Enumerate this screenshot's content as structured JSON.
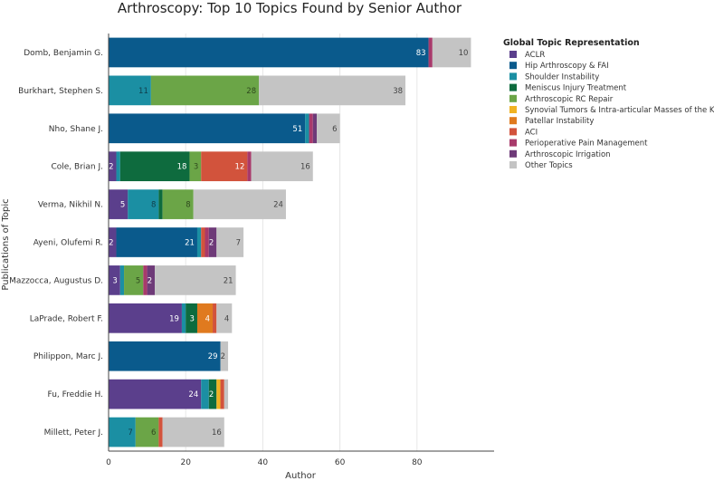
{
  "chart_data": {
    "type": "bar",
    "orientation": "horizontal",
    "stacked": true,
    "title": "Arthroscopy: Top 10 Topics Found by Senior Author",
    "xlabel": "Author",
    "ylabel": "Publications of Topic",
    "xlim": [
      0,
      100
    ],
    "xticks": [
      0,
      20,
      40,
      60,
      80
    ],
    "grid": true,
    "legend_title": "Global Topic Representation",
    "legend_position": "right",
    "categories": [
      "Domb, Benjamin G.",
      "Burkhart, Stephen S.",
      "Nho, Shane J.",
      "Cole, Brian J.",
      "Verma, Nikhil N.",
      "Ayeni, Olufemi R.",
      "Mazzocca, Augustus D.",
      "LaPrade, Robert F.",
      "Philippon, Marc J.",
      "Fu, Freddie H.",
      "Millett, Peter J."
    ],
    "series": [
      {
        "name": "ACLR",
        "color": "#5b3f8c",
        "values": [
          0,
          0,
          0,
          2,
          5,
          2,
          3,
          19,
          0,
          24,
          0
        ]
      },
      {
        "name": "Hip Arthroscopy & FAI",
        "color": "#0a5a8c",
        "values": [
          83,
          0,
          51,
          0,
          0,
          21,
          0,
          0,
          29,
          0,
          0
        ]
      },
      {
        "name": "Shoulder Instability",
        "color": "#1b8fa3",
        "values": [
          0,
          11,
          1,
          1,
          8,
          1,
          1,
          1,
          0,
          2,
          7
        ]
      },
      {
        "name": "Meniscus Injury Treatment",
        "color": "#0e6b3e",
        "values": [
          0,
          0,
          0,
          18,
          1,
          0,
          0,
          3,
          0,
          2,
          0
        ]
      },
      {
        "name": "Arthroscopic RC Repair",
        "color": "#6ba547",
        "values": [
          0,
          28,
          0,
          3,
          8,
          0,
          5,
          0,
          0,
          0,
          6
        ]
      },
      {
        "name": "Synovial Tumors & Intra-articular Masses of the Knee",
        "color": "#f0b323",
        "values": [
          0,
          0,
          0,
          0,
          0,
          0,
          0,
          0,
          0,
          1,
          0
        ]
      },
      {
        "name": "Patellar Instability",
        "color": "#e07a1f",
        "values": [
          0,
          0,
          0,
          0,
          0,
          0,
          0,
          4,
          0,
          0,
          0
        ]
      },
      {
        "name": "ACI",
        "color": "#d2533c",
        "values": [
          0,
          0,
          0,
          12,
          0,
          1,
          0,
          1,
          0,
          1,
          1
        ]
      },
      {
        "name": "Perioperative Pain Management",
        "color": "#a83a6b",
        "values": [
          1,
          0,
          1,
          1,
          0,
          1,
          1,
          0,
          0,
          0,
          0
        ]
      },
      {
        "name": "Arthroscopic Irrigation",
        "color": "#6e3a78",
        "values": [
          0,
          0,
          1,
          0,
          0,
          2,
          2,
          0,
          0,
          0,
          0
        ]
      },
      {
        "name": "Other Topics",
        "color": "#c4c4c4",
        "values": [
          10,
          38,
          6,
          16,
          24,
          7,
          21,
          4,
          2,
          1,
          16
        ]
      }
    ],
    "data_labels": [
      {
        "category": 0,
        "series": 1,
        "text": "83"
      },
      {
        "category": 0,
        "series": 10,
        "text": "10"
      },
      {
        "category": 1,
        "series": 2,
        "text": "11"
      },
      {
        "category": 1,
        "series": 4,
        "text": "28"
      },
      {
        "category": 1,
        "series": 10,
        "text": "38"
      },
      {
        "category": 2,
        "series": 1,
        "text": "51"
      },
      {
        "category": 2,
        "series": 10,
        "text": "6"
      },
      {
        "category": 3,
        "series": 0,
        "text": "2"
      },
      {
        "category": 3,
        "series": 3,
        "text": "18"
      },
      {
        "category": 3,
        "series": 4,
        "text": "3"
      },
      {
        "category": 3,
        "series": 7,
        "text": "12"
      },
      {
        "category": 3,
        "series": 10,
        "text": "16"
      },
      {
        "category": 4,
        "series": 0,
        "text": "5"
      },
      {
        "category": 4,
        "series": 2,
        "text": "8"
      },
      {
        "category": 4,
        "series": 4,
        "text": "8"
      },
      {
        "category": 4,
        "series": 10,
        "text": "24"
      },
      {
        "category": 5,
        "series": 0,
        "text": "2"
      },
      {
        "category": 5,
        "series": 1,
        "text": "21"
      },
      {
        "category": 5,
        "series": 9,
        "text": "2"
      },
      {
        "category": 5,
        "series": 10,
        "text": "7"
      },
      {
        "category": 6,
        "series": 0,
        "text": "3"
      },
      {
        "category": 6,
        "series": 4,
        "text": "5"
      },
      {
        "category": 6,
        "series": 9,
        "text": "2"
      },
      {
        "category": 6,
        "series": 10,
        "text": "21"
      },
      {
        "category": 7,
        "series": 0,
        "text": "19"
      },
      {
        "category": 7,
        "series": 3,
        "text": "3"
      },
      {
        "category": 7,
        "series": 6,
        "text": "4"
      },
      {
        "category": 7,
        "series": 10,
        "text": "4"
      },
      {
        "category": 8,
        "series": 1,
        "text": "29"
      },
      {
        "category": 8,
        "series": 10,
        "text": "2"
      },
      {
        "category": 9,
        "series": 0,
        "text": "24"
      },
      {
        "category": 9,
        "series": 3,
        "text": "2"
      },
      {
        "category": 10,
        "series": 2,
        "text": "7"
      },
      {
        "category": 10,
        "series": 4,
        "text": "6"
      },
      {
        "category": 10,
        "series": 10,
        "text": "16"
      }
    ]
  }
}
